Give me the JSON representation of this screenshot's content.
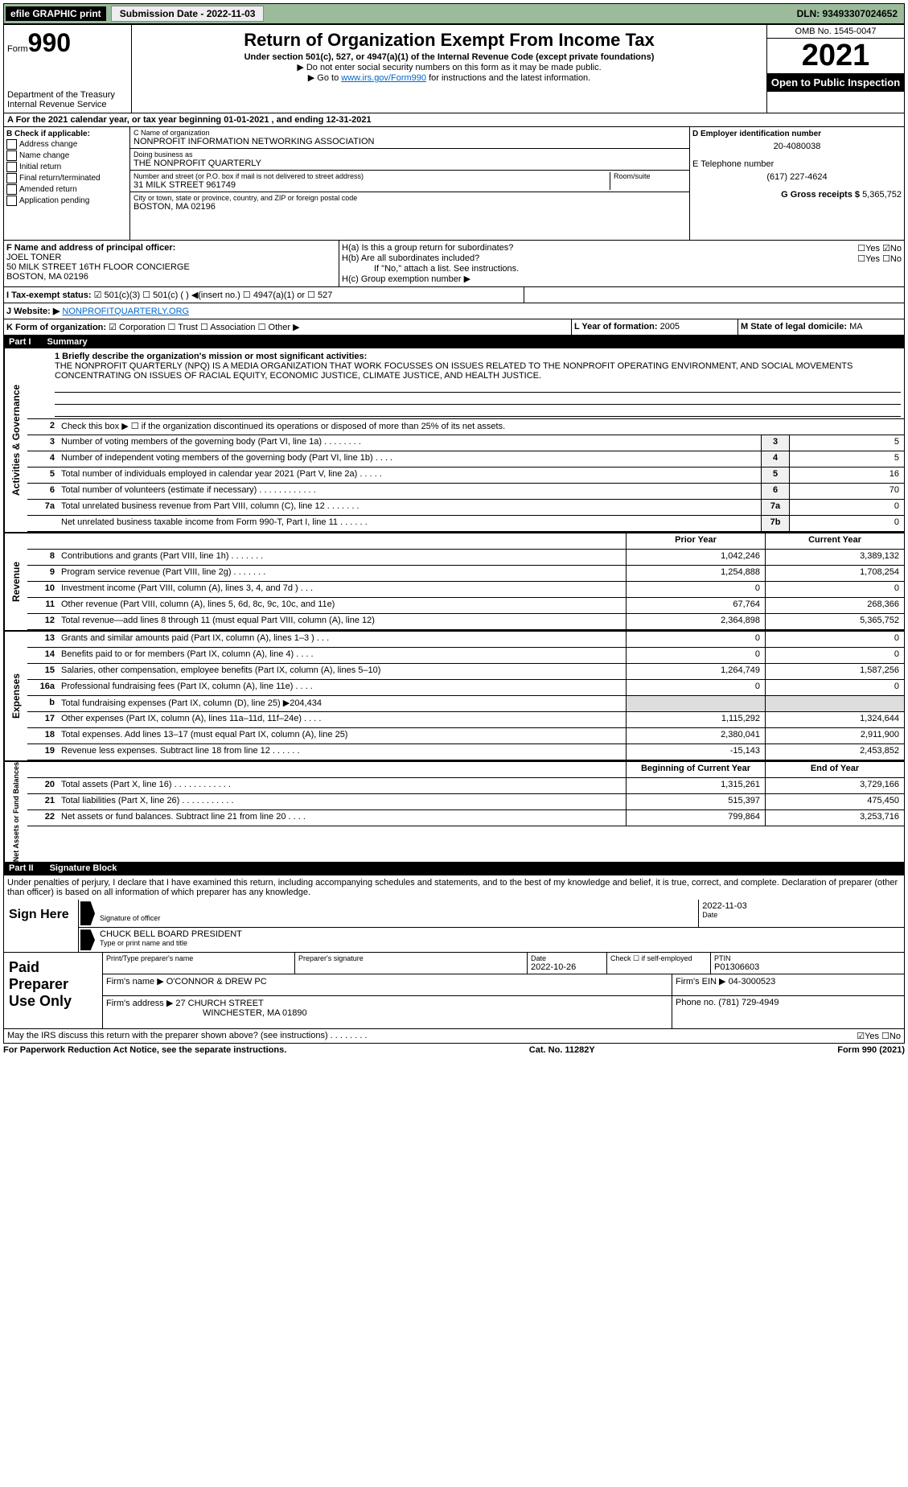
{
  "topbar": {
    "efile_label": "efile GRAPHIC print",
    "submission_btn": "Submission Date - 2022-11-03",
    "dln": "DLN: 93493307024652"
  },
  "header": {
    "form_word": "Form",
    "form_no": "990",
    "dept": "Department of the Treasury",
    "irs": "Internal Revenue Service",
    "title": "Return of Organization Exempt From Income Tax",
    "sub1": "Under section 501(c), 527, or 4947(a)(1) of the Internal Revenue Code (except private foundations)",
    "sub2": "▶ Do not enter social security numbers on this form as it may be made public.",
    "sub3_pre": "▶ Go to ",
    "sub3_link": "www.irs.gov/Form990",
    "sub3_post": " for instructions and the latest information.",
    "omb": "OMB No. 1545-0047",
    "year": "2021",
    "inspection": "Open to Public Inspection"
  },
  "row_a": "A  For the 2021 calendar year, or tax year beginning 01-01-2021    , and ending 12-31-2021",
  "col_b": {
    "label": "B Check if applicable:",
    "items": [
      "Address change",
      "Name change",
      "Initial return",
      "Final return/terminated",
      "Amended return",
      "Application pending"
    ]
  },
  "col_c": {
    "name_lab": "C Name of organization",
    "name_val": "NONPROFIT INFORMATION NETWORKING ASSOCIATION",
    "dba_lab": "Doing business as",
    "dba_val": "THE NONPROFIT QUARTERLY",
    "addr_lab": "Number and street (or P.O. box if mail is not delivered to street address)",
    "addr_val": "31 MILK STREET 961749",
    "room_lab": "Room/suite",
    "city_lab": "City or town, state or province, country, and ZIP or foreign postal code",
    "city_val": "BOSTON, MA  02196"
  },
  "col_d": {
    "d_lab": "D Employer identification number",
    "d_val": "20-4080038",
    "e_lab": "E Telephone number",
    "e_val": "(617) 227-4624",
    "g_lab": "G Gross receipts $",
    "g_val": "5,365,752"
  },
  "col_f": {
    "lab": "F Name and address of principal officer:",
    "name": "JOEL TONER",
    "addr1": "50 MILK STREET 16TH FLOOR CONCIERGE",
    "addr2": "BOSTON, MA  02196"
  },
  "col_h": {
    "ha": "H(a)  Is this a group return for subordinates?",
    "ha_ans": "☐Yes ☑No",
    "hb": "H(b)  Are all subordinates included?",
    "hb_ans": "☐Yes ☐No",
    "hb_note": "If \"No,\" attach a list. See instructions.",
    "hc": "H(c)  Group exemption number ▶"
  },
  "row_i": {
    "label": "I  Tax-exempt status:",
    "opts": "☑ 501(c)(3)    ☐ 501(c) (  ) ◀(insert no.)    ☐ 4947(a)(1) or    ☐ 527"
  },
  "row_j": {
    "label": "J  Website: ▶",
    "val": "NONPROFITQUARTERLY.ORG"
  },
  "row_k": {
    "label": "K Form of organization:",
    "opts": "☑ Corporation  ☐ Trust  ☐ Association  ☐ Other ▶"
  },
  "row_l": {
    "label": "L Year of formation:",
    "val": "2005"
  },
  "row_m": {
    "label": "M State of legal domicile:",
    "val": "MA"
  },
  "part1": {
    "num": "Part I",
    "title": "Summary"
  },
  "mission": {
    "line1_lab": "1  Briefly describe the organization's mission or most significant activities:",
    "text": "THE NONPROFIT QUARTERLY (NPQ) IS A MEDIA ORGANIZATION THAT WORK FOCUSSES ON ISSUES RELATED TO THE NONPROFIT OPERATING ENVIRONMENT, AND SOCIAL MOVEMENTS CONCENTRATING ON ISSUES OF RACIAL EQUITY, ECONOMIC JUSTICE, CLIMATE JUSTICE, AND HEALTH JUSTICE."
  },
  "gov": {
    "tab": "Activities & Governance",
    "rows": [
      {
        "n": "2",
        "d": "Check this box ▶ ☐ if the organization discontinued its operations or disposed of more than 25% of its net assets.",
        "box": "",
        "v": ""
      },
      {
        "n": "3",
        "d": "Number of voting members of the governing body (Part VI, line 1a)   .     .     .     .     .     .     .     .",
        "box": "3",
        "v": "5"
      },
      {
        "n": "4",
        "d": "Number of independent voting members of the governing body (Part VI, line 1b)    .     .     .     .",
        "box": "4",
        "v": "5"
      },
      {
        "n": "5",
        "d": "Total number of individuals employed in calendar year 2021 (Part V, line 2a)   .     .     .     .     .",
        "box": "5",
        "v": "16"
      },
      {
        "n": "6",
        "d": "Total number of volunteers (estimate if necessary)    .     .     .     .     .     .     .     .     .     .     .     .",
        "box": "6",
        "v": "70"
      },
      {
        "n": "7a",
        "d": "Total unrelated business revenue from Part VIII, column (C), line 12   .     .     .     .     .     .     .",
        "box": "7a",
        "v": "0"
      },
      {
        "n": "",
        "d": "Net unrelated business taxable income from Form 990-T, Part I, line 11   .     .     .     .     .     .",
        "box": "7b",
        "v": "0"
      }
    ]
  },
  "rev": {
    "tab": "Revenue",
    "hdr_prior": "Prior Year",
    "hdr_curr": "Current Year",
    "rows": [
      {
        "n": "8",
        "d": "Contributions and grants (Part VIII, line 1h)   .     .     .     .     .     .     .",
        "p": "1,042,246",
        "c": "3,389,132"
      },
      {
        "n": "9",
        "d": "Program service revenue (Part VIII, line 2g)    .     .     .     .     .     .     .",
        "p": "1,254,888",
        "c": "1,708,254"
      },
      {
        "n": "10",
        "d": "Investment income (Part VIII, column (A), lines 3, 4, and 7d )   .     .     .",
        "p": "0",
        "c": "0"
      },
      {
        "n": "11",
        "d": "Other revenue (Part VIII, column (A), lines 5, 6d, 8c, 9c, 10c, and 11e)",
        "p": "67,764",
        "c": "268,366"
      },
      {
        "n": "12",
        "d": "Total revenue—add lines 8 through 11 (must equal Part VIII, column (A), line 12)",
        "p": "2,364,898",
        "c": "5,365,752"
      }
    ]
  },
  "exp": {
    "tab": "Expenses",
    "rows": [
      {
        "n": "13",
        "d": "Grants and similar amounts paid (Part IX, column (A), lines 1–3 )  .     .     .",
        "p": "0",
        "c": "0"
      },
      {
        "n": "14",
        "d": "Benefits paid to or for members (Part IX, column (A), line 4)   .     .     .     .",
        "p": "0",
        "c": "0"
      },
      {
        "n": "15",
        "d": "Salaries, other compensation, employee benefits (Part IX, column (A), lines 5–10)",
        "p": "1,264,749",
        "c": "1,587,256"
      },
      {
        "n": "16a",
        "d": "Professional fundraising fees (Part IX, column (A), line 11e)   .     .     .     .",
        "p": "0",
        "c": "0"
      },
      {
        "n": "b",
        "d": "Total fundraising expenses (Part IX, column (D), line 25) ▶204,434",
        "p": "",
        "c": "",
        "shaded": true
      },
      {
        "n": "17",
        "d": "Other expenses (Part IX, column (A), lines 11a–11d, 11f–24e)    .     .     .     .",
        "p": "1,115,292",
        "c": "1,324,644"
      },
      {
        "n": "18",
        "d": "Total expenses. Add lines 13–17 (must equal Part IX, column (A), line 25)",
        "p": "2,380,041",
        "c": "2,911,900"
      },
      {
        "n": "19",
        "d": "Revenue less expenses. Subtract line 18 from line 12   .     .     .     .     .     .",
        "p": "-15,143",
        "c": "2,453,852"
      }
    ]
  },
  "net": {
    "tab": "Net Assets or Fund Balances",
    "hdr_beg": "Beginning of Current Year",
    "hdr_end": "End of Year",
    "rows": [
      {
        "n": "20",
        "d": "Total assets (Part X, line 16)  .     .     .     .     .     .     .     .     .     .     .     .",
        "p": "1,315,261",
        "c": "3,729,166"
      },
      {
        "n": "21",
        "d": "Total liabilities (Part X, line 26)  .     .     .     .     .     .     .     .     .     .     .",
        "p": "515,397",
        "c": "475,450"
      },
      {
        "n": "22",
        "d": "Net assets or fund balances. Subtract line 21 from line 20   .     .     .     .",
        "p": "799,864",
        "c": "3,253,716"
      }
    ]
  },
  "part2": {
    "num": "Part II",
    "title": "Signature Block"
  },
  "penalties": "Under penalties of perjury, I declare that I have examined this return, including accompanying schedules and statements, and to the best of my knowledge and belief, it is true, correct, and complete. Declaration of preparer (other than officer) is based on all information of which preparer has any knowledge.",
  "sign": {
    "left": "Sign Here",
    "sig_lab": "Signature of officer",
    "date_lab": "Date",
    "date_val": "2022-11-03",
    "name_val": "CHUCK BELL  BOARD PRESIDENT",
    "name_lab": "Type or print name and title"
  },
  "prep": {
    "left": "Paid Preparer Use Only",
    "r1": {
      "c1_lab": "Print/Type preparer's name",
      "c1_val": "",
      "c2_lab": "Preparer's signature",
      "c2_val": "",
      "c3_lab": "Date",
      "c3_val": "2022-10-26",
      "c4_lab": "Check ☐ if self-employed",
      "c5_lab": "PTIN",
      "c5_val": "P01306603"
    },
    "r2": {
      "lab": "Firm's name    ▶",
      "val": "O'CONNOR & DREW PC",
      "ein_lab": "Firm's EIN ▶",
      "ein_val": "04-3000523"
    },
    "r3": {
      "lab": "Firm's address ▶",
      "val1": "27 CHURCH STREET",
      "val2": "WINCHESTER, MA  01890",
      "ph_lab": "Phone no.",
      "ph_val": "(781) 729-4949"
    }
  },
  "footer_q": "May the IRS discuss this return with the preparer shown above? (see instructions)   .     .     .     .     .     .     .     .",
  "footer_ans": "☑Yes  ☐No",
  "bottom": {
    "left": "For Paperwork Reduction Act Notice, see the separate instructions.",
    "mid": "Cat. No. 11282Y",
    "right": "Form 990 (2021)"
  }
}
